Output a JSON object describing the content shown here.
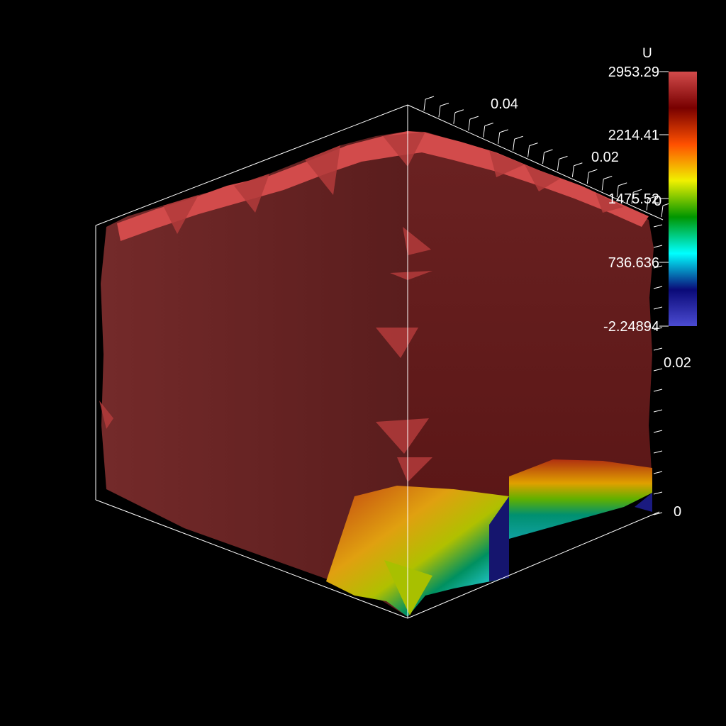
{
  "colorbar": {
    "title": "U",
    "labels": [
      "2953.29",
      "2214.41",
      "1475.52",
      "736.636",
      "-2.24894"
    ],
    "range": [
      -2.24894,
      2953.29
    ],
    "colormap": "rainbow",
    "stops": [
      "#4b4bd2",
      "#0a0a78",
      "#00ffff",
      "#009600",
      "#f0f000",
      "#ff5000",
      "#780000",
      "#d24b4b"
    ]
  },
  "axes": {
    "top_ticks": [
      "0.04",
      "0.02",
      "0"
    ],
    "right_ticks": [
      "0.02",
      "0"
    ]
  },
  "colors": {
    "background": "#000000",
    "surface": "#7a2a2a",
    "surface_highlight": "#d24b4b",
    "outline": "#ffffff"
  }
}
